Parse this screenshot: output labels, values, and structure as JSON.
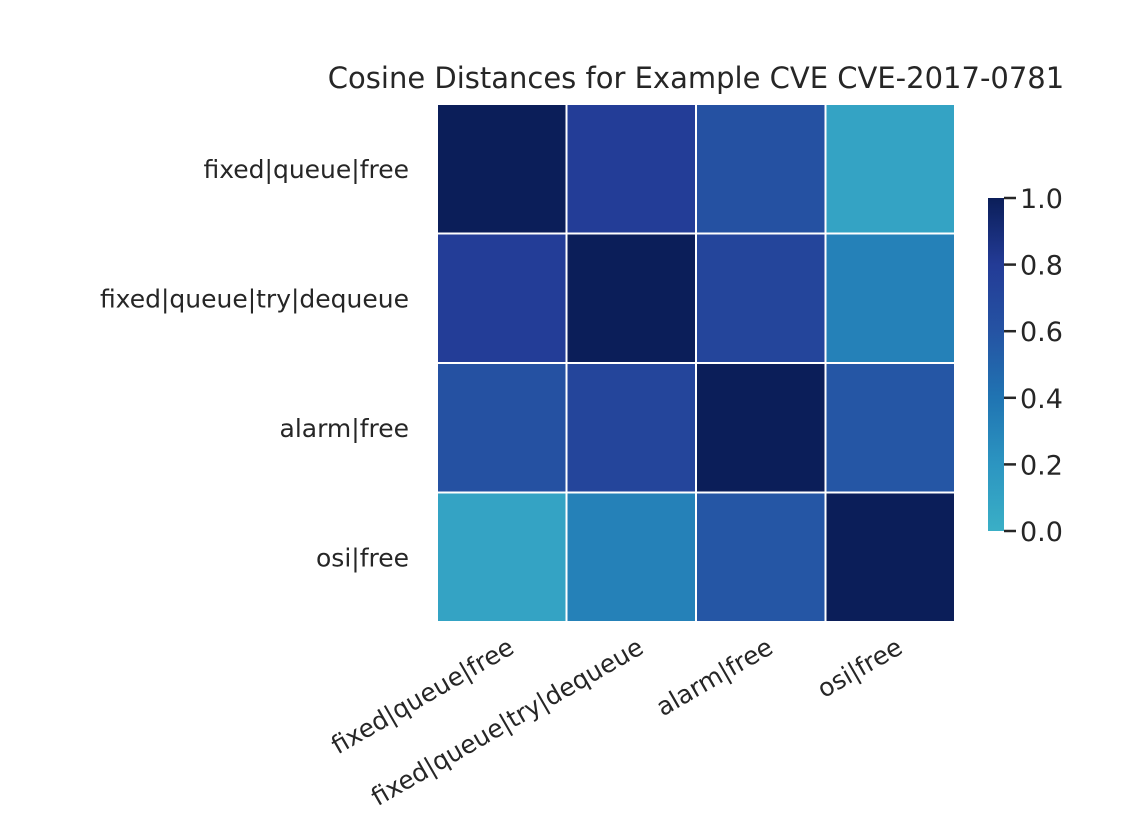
{
  "chart_data": {
    "type": "heatmap",
    "title": "Cosine Distances for Example CVE CVE-2017-0781",
    "xlabel": "",
    "ylabel": "",
    "row_labels": [
      "fixed|queue|free",
      "fixed|queue|try|dequeue",
      "alarm|free",
      "osi|free"
    ],
    "col_labels": [
      "fixed|queue|free",
      "fixed|queue|try|dequeue",
      "alarm|free",
      "osi|free"
    ],
    "values": [
      [
        1.0,
        0.78,
        0.62,
        0.09
      ],
      [
        0.78,
        1.0,
        0.72,
        0.32
      ],
      [
        0.62,
        0.72,
        1.0,
        0.58
      ],
      [
        0.09,
        0.32,
        0.58,
        1.0
      ]
    ],
    "colorbar": {
      "range": [
        0,
        1
      ],
      "ticks": [
        "0.0",
        "0.2",
        "0.4",
        "0.6",
        "0.8",
        "1.0"
      ],
      "colormap": "YlGnBu",
      "colors": [
        "#3aafc6",
        "#2c95c1",
        "#2074b2",
        "#2553a3",
        "#233b96",
        "#0b1e59"
      ]
    },
    "grid": false,
    "cell_border_color": "#ffffff"
  }
}
